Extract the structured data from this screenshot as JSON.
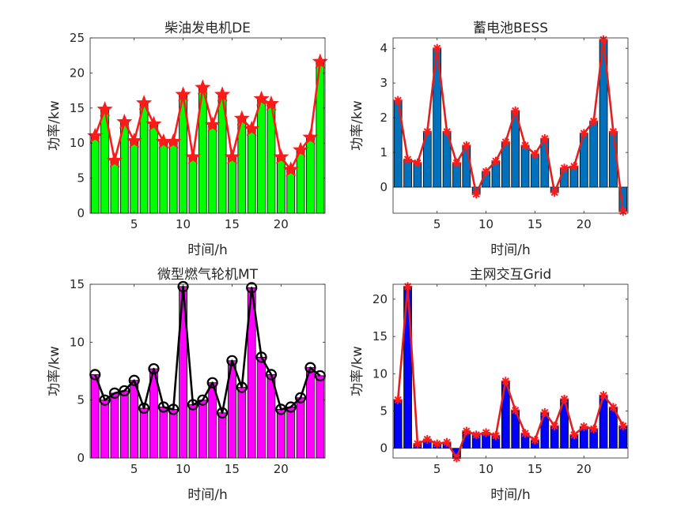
{
  "chart_data": [
    {
      "type": "bar",
      "title": "柴油发电机DE",
      "xlabel": "时间/h",
      "ylabel": "功率/kw",
      "xlim": [
        0.5,
        24.5
      ],
      "ylim": [
        0,
        25
      ],
      "xticks": [
        5,
        10,
        15,
        20
      ],
      "yticks": [
        0,
        5,
        10,
        15,
        20,
        25
      ],
      "x": [
        1,
        2,
        3,
        4,
        5,
        6,
        7,
        8,
        9,
        10,
        11,
        12,
        13,
        14,
        15,
        16,
        17,
        18,
        19,
        20,
        21,
        22,
        23,
        24
      ],
      "values": [
        11,
        14.8,
        7.5,
        13,
        10.3,
        15.7,
        12.7,
        10.2,
        10.2,
        16.9,
        8,
        17.9,
        12.6,
        16.9,
        8,
        13.5,
        12,
        16.3,
        15.6,
        8,
        6.2,
        9,
        10.8,
        21.6
      ],
      "bar_color": "#00ff00",
      "line_color": "#ff1a1a",
      "marker": "star",
      "marker_color": "#ff1a1a"
    },
    {
      "type": "bar",
      "title": "蓄电池BESS",
      "xlabel": "时间/h",
      "ylabel": "功率/kw",
      "xlim": [
        0.5,
        24.5
      ],
      "ylim": [
        -0.75,
        4.3
      ],
      "xticks": [
        5,
        10,
        15,
        20
      ],
      "yticks": [
        0,
        1,
        2,
        3,
        4
      ],
      "x": [
        1,
        2,
        3,
        4,
        5,
        6,
        7,
        8,
        9,
        10,
        11,
        12,
        13,
        14,
        15,
        16,
        17,
        18,
        19,
        20,
        21,
        22,
        23,
        24
      ],
      "values": [
        2.5,
        0.8,
        0.7,
        1.6,
        4.0,
        1.6,
        0.7,
        1.2,
        -0.2,
        0.45,
        0.75,
        1.3,
        2.2,
        1.2,
        0.95,
        1.4,
        -0.15,
        0.55,
        0.6,
        1.55,
        1.9,
        4.25,
        1.6,
        -0.7
      ],
      "bar_color": "#0072bd",
      "line_color": "#e01f1f",
      "marker": "asterisk",
      "marker_color": "#ff1a1a"
    },
    {
      "type": "bar",
      "title": "微型燃气轮机MT",
      "xlabel": "时间/h",
      "ylabel": "功率/kw",
      "xlim": [
        0.5,
        24.5
      ],
      "ylim": [
        0,
        15
      ],
      "xticks": [
        5,
        10,
        15,
        20
      ],
      "yticks": [
        0,
        5,
        10,
        15
      ],
      "x": [
        1,
        2,
        3,
        4,
        5,
        6,
        7,
        8,
        9,
        10,
        11,
        12,
        13,
        14,
        15,
        16,
        17,
        18,
        19,
        20,
        21,
        22,
        23,
        24
      ],
      "values": [
        7.2,
        5.0,
        5.6,
        5.8,
        6.7,
        4.3,
        7.7,
        4.4,
        4.2,
        14.8,
        4.6,
        5.0,
        6.5,
        3.9,
        8.4,
        6.1,
        14.7,
        8.7,
        7.2,
        4.2,
        4.4,
        5.2,
        7.8,
        7.1
      ],
      "bar_color": "#ff00ff",
      "line_color": "#000000",
      "marker": "circle",
      "marker_color": "#000000"
    },
    {
      "type": "bar",
      "title": "主网交互Grid",
      "xlabel": "时间/h",
      "ylabel": "功率/kw",
      "xlim": [
        0.5,
        24.5
      ],
      "ylim": [
        -1.3,
        22
      ],
      "xticks": [
        5,
        10,
        15,
        20
      ],
      "yticks": [
        0,
        5,
        10,
        15,
        20
      ],
      "x": [
        1,
        2,
        3,
        4,
        5,
        6,
        7,
        8,
        9,
        10,
        11,
        12,
        13,
        14,
        15,
        16,
        17,
        18,
        19,
        20,
        21,
        22,
        23,
        24
      ],
      "values": [
        6.5,
        21.7,
        0.6,
        1.2,
        0.6,
        0.8,
        -1.3,
        2.3,
        1.8,
        2.1,
        1.7,
        9.0,
        5.1,
        2.0,
        1.1,
        4.8,
        3.0,
        6.6,
        1.8,
        2.9,
        2.6,
        7.1,
        5.5,
        3.0
      ],
      "bar_color": "#0000ff",
      "line_color": "#e01f1f",
      "marker": "asterisk",
      "marker_color": "#ff1a1a"
    }
  ]
}
